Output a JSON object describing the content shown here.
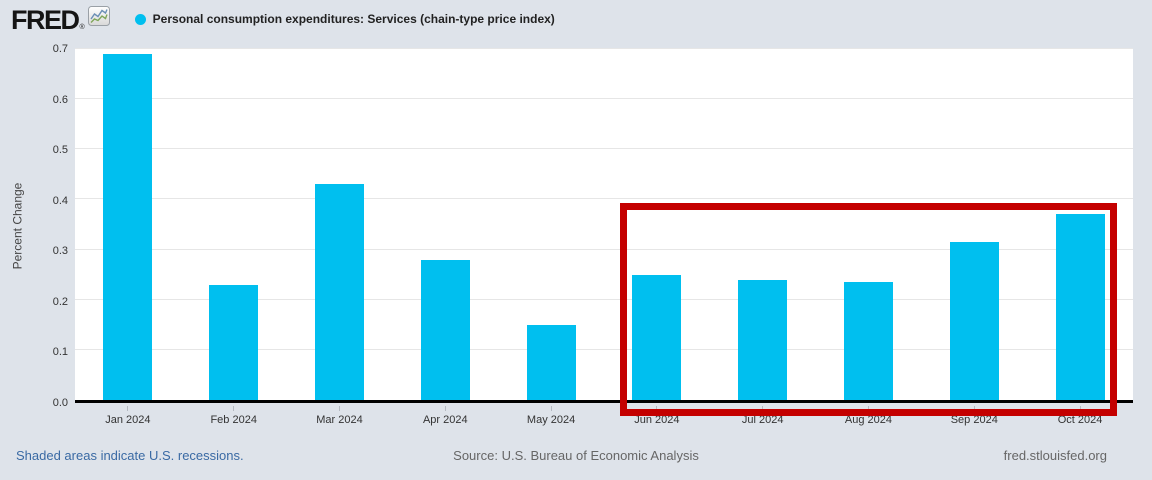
{
  "header": {
    "logo_text": "FRED",
    "registered_mark": "®",
    "legend_label": "Personal consumption expenditures: Services (chain-type price index)"
  },
  "chart_data": {
    "type": "bar",
    "title": "Personal consumption expenditures: Services (chain-type price index)",
    "xlabel": "",
    "ylabel": "Percent Change",
    "ylim": [
      0,
      0.7
    ],
    "ytick_labels": [
      "0.0",
      "0.1",
      "0.2",
      "0.3",
      "0.4",
      "0.5",
      "0.6",
      "0.7"
    ],
    "grid": true,
    "legend_position": "top-left",
    "categories": [
      "Jan 2024",
      "Feb 2024",
      "Mar 2024",
      "Apr 2024",
      "May 2024",
      "Jun 2024",
      "Jul 2024",
      "Aug 2024",
      "Sep 2024",
      "Oct 2024"
    ],
    "values": [
      0.69,
      0.23,
      0.43,
      0.28,
      0.15,
      0.25,
      0.24,
      0.235,
      0.315,
      0.37
    ],
    "bar_color": "#00bfef",
    "highlight": {
      "months": [
        "Jun 2024",
        "Jul 2024",
        "Aug 2024",
        "Sep 2024",
        "Oct 2024"
      ],
      "color": "#c40000"
    }
  },
  "footer": {
    "recession_note": "Shaded areas indicate U.S. recessions.",
    "source": "Source: U.S. Bureau of Economic Analysis",
    "site": "fred.stlouisfed.org"
  },
  "colors": {
    "accent": "#00bfef",
    "highlight": "#c40000",
    "link_blue": "#3a6aa4",
    "background": "#dee3ea"
  }
}
